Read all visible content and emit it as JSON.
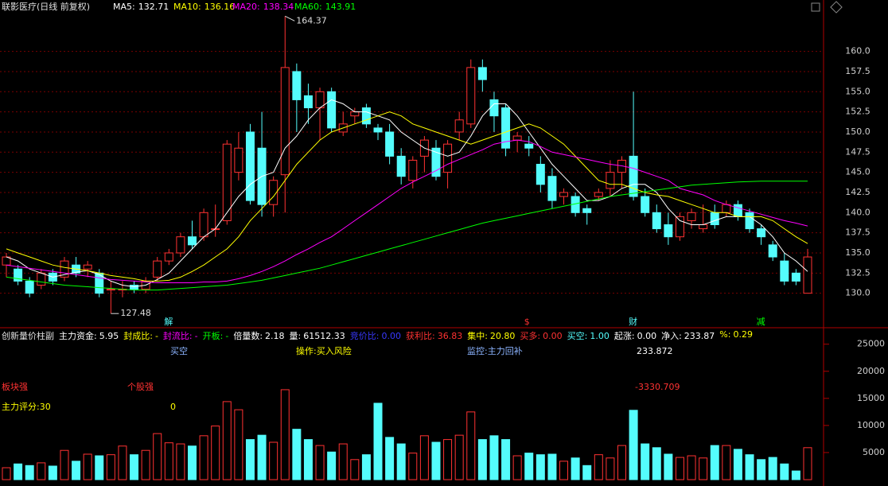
{
  "chart_data": [
    {
      "type": "candlestick",
      "title": "联影医疗(日线 前复权)",
      "open": [
        133.5,
        133,
        131.5,
        131,
        132.5,
        132,
        133.5,
        133,
        132.5,
        130.5,
        130.5,
        131,
        130.5,
        132,
        134,
        135,
        137,
        137,
        138,
        139,
        145,
        150,
        148,
        141,
        144.7,
        157.5,
        154.5,
        153,
        155,
        150,
        152,
        153,
        150.5,
        150,
        147,
        144,
        147,
        148,
        145,
        150,
        151,
        158,
        154,
        153,
        149,
        148.5,
        146,
        144.5,
        142,
        142,
        140.5,
        142,
        143,
        145,
        147,
        142,
        140,
        138.5,
        137,
        139,
        138,
        140,
        140,
        141,
        140,
        138,
        136,
        134,
        132.5,
        130
      ],
      "high": [
        135,
        133.5,
        132,
        133,
        133,
        134.5,
        134.5,
        134,
        133,
        131.5,
        131.5,
        131.5,
        132,
        134.5,
        135.5,
        137.5,
        139,
        140.5,
        141,
        149,
        150,
        151,
        152.5,
        144.5,
        164.37,
        158.5,
        156,
        155.5,
        155.5,
        152.5,
        153,
        153.5,
        151,
        151,
        148,
        147,
        149.5,
        149,
        149,
        152.5,
        159,
        159,
        155,
        153.5,
        150,
        149.5,
        147,
        145.5,
        143,
        142.5,
        141,
        143,
        146.5,
        147,
        155,
        143,
        141,
        140,
        140,
        140.5,
        141,
        141,
        141.5,
        141.5,
        140.5,
        138.5,
        136.5,
        135,
        133,
        135.5
      ],
      "low": [
        132,
        131,
        129.5,
        130.5,
        131,
        131.5,
        132,
        132,
        129.5,
        127.48,
        129.5,
        130,
        130,
        131.5,
        133.5,
        134.5,
        135.5,
        136.5,
        137,
        138.5,
        144,
        141,
        139.5,
        139.5,
        140,
        150,
        151,
        149,
        150,
        149.5,
        151,
        150.5,
        149,
        146,
        143.5,
        143,
        145,
        144,
        143,
        149,
        150.5,
        155,
        150,
        147,
        147.5,
        147,
        142.5,
        140.5,
        141,
        139.5,
        138.5,
        141.5,
        142,
        143,
        141.5,
        139.5,
        137.5,
        136,
        136.5,
        138,
        137.5,
        138,
        139.5,
        139,
        137.5,
        136,
        134,
        131,
        131,
        130
      ],
      "close": [
        134.5,
        131.5,
        130,
        132.5,
        131.5,
        134,
        132.5,
        133.5,
        130,
        130.5,
        130.5,
        130.5,
        131.5,
        134,
        135,
        137,
        136,
        140,
        138,
        148.5,
        148,
        141.5,
        141,
        144,
        158,
        154,
        153,
        155,
        150.5,
        151,
        152.5,
        151,
        150,
        147,
        144.5,
        146.5,
        149,
        144.5,
        148.5,
        151.5,
        158,
        156.5,
        152,
        148,
        149.5,
        148,
        143.5,
        141.5,
        142.5,
        140,
        140,
        142.5,
        145,
        146.5,
        142,
        140,
        138,
        137,
        139.5,
        140,
        138.5,
        138.5,
        141,
        139.5,
        138,
        137,
        134.5,
        131.5,
        131.5,
        134.5
      ],
      "up_color": "#ff3232",
      "down_color": "#54fcfc",
      "series": [
        {
          "name": "MA5:",
          "color": "#ffffff",
          "values": [
            134.5,
            134,
            133,
            132.5,
            132,
            132.3,
            132.6,
            132.8,
            132.3,
            131.5,
            131,
            130.8,
            131,
            131.7,
            132.5,
            134,
            135.5,
            137,
            138,
            140,
            142,
            143.5,
            144.5,
            145,
            148,
            149.5,
            151.5,
            153,
            154,
            153.5,
            152.5,
            152.5,
            152,
            151.5,
            150,
            149,
            148,
            147.5,
            147,
            147.5,
            149.5,
            152,
            153.5,
            153.5,
            152,
            150,
            148,
            146,
            144.5,
            143,
            141.5,
            141.5,
            142,
            143,
            143.5,
            143.5,
            142.5,
            140.5,
            139,
            138.5,
            138.5,
            139,
            139.5,
            139.5,
            139.5,
            138.5,
            137,
            135,
            134,
            132.71
          ]
        },
        {
          "name": "MA10:",
          "color": "#ffff00",
          "values": [
            135.5,
            135,
            134.5,
            134,
            133.5,
            133.2,
            133,
            132.8,
            132.5,
            132.2,
            132,
            131.8,
            131.5,
            131.5,
            131.6,
            132,
            132.7,
            133.5,
            134.5,
            135.5,
            137,
            139,
            140.5,
            142,
            144,
            146,
            147.5,
            149,
            150,
            150.5,
            151,
            151.5,
            152,
            152.5,
            152,
            151,
            150.5,
            150,
            149.5,
            149,
            148.5,
            149,
            149.5,
            150,
            150.5,
            151,
            150.5,
            149.5,
            148.5,
            147,
            145.5,
            144,
            143.5,
            143.5,
            143,
            142.5,
            142.2,
            142,
            141.5,
            141,
            140.5,
            140,
            140,
            139.5,
            139.5,
            139.5,
            139,
            138,
            137,
            136.16
          ]
        },
        {
          "name": "MA20:",
          "color": "#ff00ff",
          "values": [
            133.5,
            133.3,
            133.1,
            132.9,
            132.7,
            132.5,
            132.3,
            132.1,
            131.9,
            131.7,
            131.6,
            131.5,
            131.4,
            131.3,
            131.3,
            131.3,
            131.3,
            131.4,
            131.4,
            131.5,
            131.8,
            132.2,
            132.7,
            133.3,
            134,
            134.8,
            135.5,
            136.3,
            137,
            138,
            139,
            140,
            141,
            142,
            143,
            143.8,
            144.5,
            145.2,
            146,
            146.6,
            147.2,
            147.8,
            148.5,
            148.8,
            149,
            148.8,
            148.2,
            147.5,
            147.2,
            146.9,
            146.6,
            146.3,
            146,
            145.8,
            145.5,
            145,
            144.5,
            144,
            143,
            142.6,
            142.2,
            141.5,
            141,
            140.6,
            140.2,
            139.8,
            139.4,
            139,
            138.7,
            138.34
          ]
        },
        {
          "name": "MA60:",
          "color": "#00ff00",
          "values": [
            132,
            131.8,
            131.6,
            131.4,
            131.2,
            131,
            130.9,
            130.8,
            130.7,
            130.6,
            130.5,
            130.4,
            130.4,
            130.4,
            130.5,
            130.6,
            130.7,
            130.8,
            130.9,
            131,
            131.2,
            131.4,
            131.6,
            131.9,
            132.2,
            132.5,
            132.8,
            133.1,
            133.5,
            133.9,
            134.3,
            134.7,
            135.1,
            135.5,
            135.9,
            136.3,
            136.7,
            137.1,
            137.5,
            137.9,
            138.3,
            138.7,
            139,
            139.3,
            139.6,
            139.9,
            140.2,
            140.5,
            140.8,
            141.1,
            141.4,
            141.7,
            142,
            142.2,
            142.4,
            142.6,
            142.8,
            143,
            143.2,
            143.4,
            143.5,
            143.6,
            143.7,
            143.8,
            143.85,
            143.9,
            143.9,
            143.9,
            143.9,
            143.91
          ]
        }
      ],
      "markers": [
        {
          "text": "解",
          "index": 14,
          "color": "#54fcfc"
        },
        {
          "text": "$",
          "index": 45,
          "color": "#ff3232"
        },
        {
          "text": "财",
          "index": 54,
          "color": "#54fcfc"
        },
        {
          "text": "减",
          "index": 65,
          "color": "#00ff00"
        }
      ],
      "ylim": [
        127.4,
        164.6
      ],
      "yticks": [
        {
          "value": 130,
          "label": "130.0"
        },
        132.5,
        {
          "value": 135,
          "label": "135.0"
        },
        137.5,
        {
          "value": 140,
          "label": "140.0"
        },
        142.5,
        {
          "value": 145,
          "label": "145.0"
        },
        147.5,
        {
          "value": 150,
          "label": "150.0"
        },
        152.5,
        {
          "value": 155,
          "label": "155.0"
        },
        157.5,
        {
          "value": 160,
          "label": "160.0"
        }
      ],
      "grid": true
    },
    {
      "type": "bar",
      "title": "创新量价柱副",
      "indicators": [
        {
          "label": "主力资金:",
          "value": "5.95",
          "color": "#ffffff"
        },
        {
          "label": "封成比:",
          "value": "-",
          "color": "#ffff00"
        },
        {
          "label": "封流比:",
          "value": "-",
          "color": "#ff00ff"
        },
        {
          "label": "开板:",
          "value": "-",
          "color": "#00ff00"
        },
        {
          "label": "倍量数:",
          "value": "2.18",
          "color": "#ffffff"
        },
        {
          "label": "量:",
          "value": "61512.33",
          "color": "#ffffff"
        },
        {
          "label": "竞价比:",
          "value": "0.00",
          "color": "#3838ff"
        },
        {
          "label": "获利比:",
          "value": "36.83",
          "color": "#ff3232"
        },
        {
          "label": "集中:",
          "value": "20.80",
          "color": "#ffff00"
        },
        {
          "label": "买多:",
          "value": "0.00",
          "color": "#ff3232"
        },
        {
          "label": "买空:",
          "value": "1.00",
          "color": "#54fcfc"
        },
        {
          "label": "起涨:",
          "value": "0.00",
          "color": "#ffffff"
        },
        {
          "label": "净入:",
          "value": "233.87",
          "color": "#ffffff"
        },
        {
          "label": "%:",
          "value": "0.29",
          "color": "#ffff00"
        }
      ],
      "annotations": [
        {
          "text": "买空",
          "color": "#8cb4ff"
        },
        {
          "text": "操作:买入风险",
          "color": "#ffff00"
        },
        {
          "text": "监控:主力回补",
          "color": "#8cb4ff"
        },
        {
          "text": 233.872,
          "color": "#ffffff"
        },
        {
          "text": "板块强",
          "color": "#ff3232"
        },
        {
          "text": "个股强",
          "color": "#ff3232"
        },
        {
          "text": -3330.709,
          "color": "#ff3232"
        },
        {
          "text": "主力评分:30",
          "color": "#ffff00"
        },
        {
          "text": "0",
          "color": "#ffff00"
        }
      ],
      "values": [
        2200,
        2900,
        2600,
        3100,
        2500,
        5400,
        3400,
        4700,
        4400,
        4600,
        6200,
        4600,
        5400,
        8500,
        6800,
        6600,
        6200,
        8100,
        9900,
        14400,
        12900,
        7400,
        8200,
        6900,
        16600,
        9300,
        7400,
        6300,
        5100,
        6600,
        3700,
        4600,
        14100,
        7800,
        6600,
        4900,
        8100,
        6900,
        7400,
        8200,
        12500,
        7400,
        8100,
        7400,
        4400,
        4900,
        4600,
        4700,
        3400,
        4000,
        2600,
        4600,
        4000,
        6300,
        12800,
        6600,
        5900,
        4700,
        4100,
        4400,
        4000,
        6300,
        6300,
        5600,
        4600,
        3700,
        4100,
        2900,
        1600,
        5900
      ],
      "ylim": [
        0,
        27600
      ],
      "yticks": [
        5000,
        10000,
        15000,
        20000,
        25000
      ],
      "grid": true
    }
  ]
}
